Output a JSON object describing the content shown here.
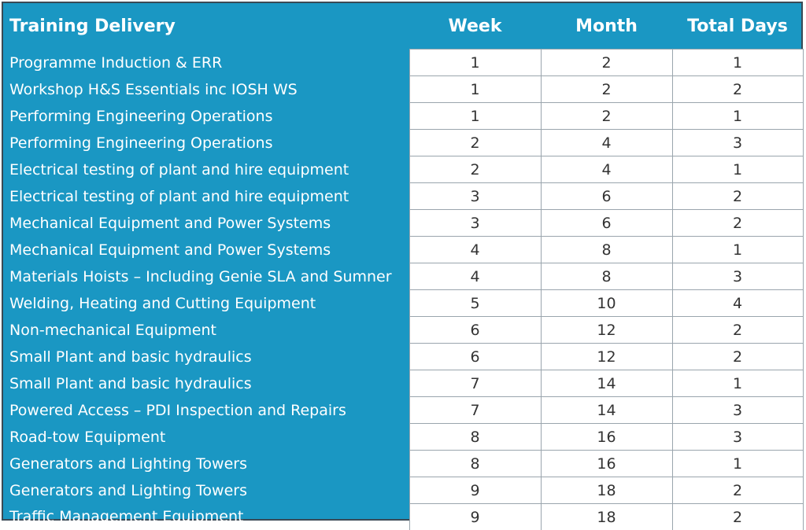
{
  "header": {
    "title": "Training Delivery",
    "week": "Week",
    "month": "Month",
    "total_days": "Total Days"
  },
  "rows": [
    {
      "name": "Programme Induction & ERR",
      "week": "1",
      "month": "2",
      "days": "1"
    },
    {
      "name": "Workshop H&S Essentials inc IOSH WS",
      "week": "1",
      "month": "2",
      "days": "2"
    },
    {
      "name": "Performing Engineering Operations",
      "week": "1",
      "month": "2",
      "days": "1"
    },
    {
      "name": "Performing Engineering Operations",
      "week": "2",
      "month": "4",
      "days": "3"
    },
    {
      "name": "Electrical testing of plant and hire equipment",
      "week": "2",
      "month": "4",
      "days": "1"
    },
    {
      "name": "Electrical testing of plant and hire equipment",
      "week": "3",
      "month": "6",
      "days": "2"
    },
    {
      "name": "Mechanical Equipment and Power Systems",
      "week": "3",
      "month": "6",
      "days": "2"
    },
    {
      "name": "Mechanical Equipment and Power Systems",
      "week": "4",
      "month": "8",
      "days": "1"
    },
    {
      "name": "Materials Hoists – Including Genie SLA and Sumner",
      "week": "4",
      "month": "8",
      "days": "3"
    },
    {
      "name": "Welding, Heating and Cutting Equipment",
      "week": "5",
      "month": "10",
      "days": "4"
    },
    {
      "name": "Non-mechanical Equipment",
      "week": "6",
      "month": "12",
      "days": "2"
    },
    {
      "name": "Small Plant and basic hydraulics",
      "week": "6",
      "month": "12",
      "days": "2"
    },
    {
      "name": "Small Plant and basic hydraulics",
      "week": "7",
      "month": "14",
      "days": "1"
    },
    {
      "name": "Powered Access – PDI Inspection and Repairs",
      "week": "7",
      "month": "14",
      "days": "3"
    },
    {
      "name": "Road-tow Equipment",
      "week": "8",
      "month": "16",
      "days": "3"
    },
    {
      "name": "Generators and Lighting Towers",
      "week": "8",
      "month": "16",
      "days": "1"
    },
    {
      "name": "Generators and Lighting Towers",
      "week": "9",
      "month": "18",
      "days": "2"
    },
    {
      "name": "Traffic Management Equipment",
      "week": "9",
      "month": "18",
      "days": "2"
    }
  ],
  "colors": {
    "header_bg": "#1a97c3",
    "cell_bg": "#ffffff",
    "border": "#3a4a55"
  }
}
